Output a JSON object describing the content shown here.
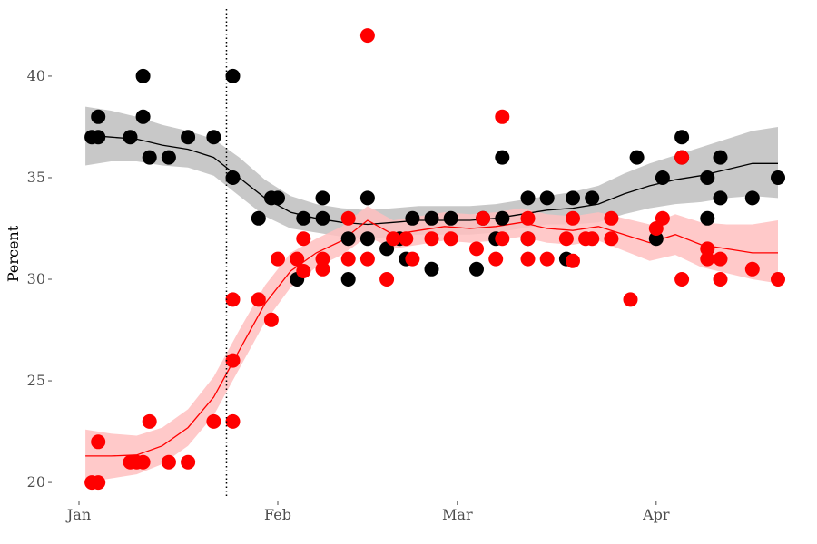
{
  "chart_data": {
    "type": "scatter",
    "title": "",
    "xlabel": "",
    "ylabel": "Percent",
    "xlim": [
      "2021-01-01",
      "2021-04-22"
    ],
    "ylim": [
      19.2,
      43.3
    ],
    "grid": false,
    "x_ticks": [
      {
        "date": "2021-01-01",
        "label": "Jan"
      },
      {
        "date": "2021-02-01",
        "label": "Feb"
      },
      {
        "date": "2021-03-01",
        "label": "Mar"
      },
      {
        "date": "2021-04-01",
        "label": "Apr"
      }
    ],
    "y_ticks": [
      20,
      25,
      30,
      35,
      40
    ],
    "vline": {
      "date": "2021-01-24",
      "style": "dotted",
      "color": "#000000"
    },
    "series": [
      {
        "color": "#000000",
        "ribbon_color": "#c8c8c8",
        "points": [
          {
            "x": "2021-01-03",
            "y": 37
          },
          {
            "x": "2021-01-04",
            "y": 37
          },
          {
            "x": "2021-01-04",
            "y": 38
          },
          {
            "x": "2021-01-09",
            "y": 37
          },
          {
            "x": "2021-01-11",
            "y": 40
          },
          {
            "x": "2021-01-11",
            "y": 38
          },
          {
            "x": "2021-01-12",
            "y": 36
          },
          {
            "x": "2021-01-15",
            "y": 36
          },
          {
            "x": "2021-01-18",
            "y": 37
          },
          {
            "x": "2021-01-22",
            "y": 37
          },
          {
            "x": "2021-01-25",
            "y": 40
          },
          {
            "x": "2021-01-25",
            "y": 35
          },
          {
            "x": "2021-01-29",
            "y": 33
          },
          {
            "x": "2021-01-31",
            "y": 34
          },
          {
            "x": "2021-02-01",
            "y": 34
          },
          {
            "x": "2021-02-04",
            "y": 30
          },
          {
            "x": "2021-02-05",
            "y": 33
          },
          {
            "x": "2021-02-08",
            "y": 34
          },
          {
            "x": "2021-02-08",
            "y": 33
          },
          {
            "x": "2021-02-12",
            "y": 30
          },
          {
            "x": "2021-02-12",
            "y": 32
          },
          {
            "x": "2021-02-15",
            "y": 34
          },
          {
            "x": "2021-02-15",
            "y": 32
          },
          {
            "x": "2021-02-18",
            "y": 31.5
          },
          {
            "x": "2021-02-20",
            "y": 32
          },
          {
            "x": "2021-02-21",
            "y": 31
          },
          {
            "x": "2021-02-22",
            "y": 33
          },
          {
            "x": "2021-02-25",
            "y": 30.5
          },
          {
            "x": "2021-02-25",
            "y": 33
          },
          {
            "x": "2021-02-28",
            "y": 33
          },
          {
            "x": "2021-03-04",
            "y": 30.5
          },
          {
            "x": "2021-03-05",
            "y": 33
          },
          {
            "x": "2021-03-07",
            "y": 32
          },
          {
            "x": "2021-03-08",
            "y": 36
          },
          {
            "x": "2021-03-08",
            "y": 33
          },
          {
            "x": "2021-03-12",
            "y": 34
          },
          {
            "x": "2021-03-12",
            "y": 32
          },
          {
            "x": "2021-03-15",
            "y": 34
          },
          {
            "x": "2021-03-18",
            "y": 31
          },
          {
            "x": "2021-03-19",
            "y": 34
          },
          {
            "x": "2021-03-22",
            "y": 34
          },
          {
            "x": "2021-03-29",
            "y": 36
          },
          {
            "x": "2021-04-01",
            "y": 32
          },
          {
            "x": "2021-04-02",
            "y": 35
          },
          {
            "x": "2021-04-05",
            "y": 37
          },
          {
            "x": "2021-04-05",
            "y": 36
          },
          {
            "x": "2021-04-09",
            "y": 35
          },
          {
            "x": "2021-04-09",
            "y": 33
          },
          {
            "x": "2021-04-11",
            "y": 36
          },
          {
            "x": "2021-04-11",
            "y": 34
          },
          {
            "x": "2021-04-16",
            "y": 34
          },
          {
            "x": "2021-04-20",
            "y": 35
          }
        ],
        "trend": [
          {
            "x": "2021-01-02",
            "y": 37.1,
            "lo": 35.6,
            "hi": 38.5
          },
          {
            "x": "2021-01-06",
            "y": 37.0,
            "lo": 35.8,
            "hi": 38.3
          },
          {
            "x": "2021-01-10",
            "y": 36.9,
            "lo": 35.8,
            "hi": 38.0
          },
          {
            "x": "2021-01-14",
            "y": 36.6,
            "lo": 35.6,
            "hi": 37.6
          },
          {
            "x": "2021-01-18",
            "y": 36.4,
            "lo": 35.5,
            "hi": 37.3
          },
          {
            "x": "2021-01-22",
            "y": 36.0,
            "lo": 35.1,
            "hi": 36.9
          },
          {
            "x": "2021-01-26",
            "y": 35.0,
            "lo": 34.1,
            "hi": 36.0
          },
          {
            "x": "2021-01-30",
            "y": 34.0,
            "lo": 33.1,
            "hi": 34.9
          },
          {
            "x": "2021-02-03",
            "y": 33.3,
            "lo": 32.5,
            "hi": 34.1
          },
          {
            "x": "2021-02-07",
            "y": 33.0,
            "lo": 32.3,
            "hi": 33.7
          },
          {
            "x": "2021-02-11",
            "y": 32.8,
            "lo": 32.1,
            "hi": 33.5
          },
          {
            "x": "2021-02-15",
            "y": 32.7,
            "lo": 32.0,
            "hi": 33.4
          },
          {
            "x": "2021-02-19",
            "y": 32.8,
            "lo": 32.1,
            "hi": 33.5
          },
          {
            "x": "2021-02-23",
            "y": 32.9,
            "lo": 32.2,
            "hi": 33.6
          },
          {
            "x": "2021-02-27",
            "y": 32.9,
            "lo": 32.2,
            "hi": 33.6
          },
          {
            "x": "2021-03-03",
            "y": 32.9,
            "lo": 32.2,
            "hi": 33.6
          },
          {
            "x": "2021-03-07",
            "y": 33.0,
            "lo": 32.3,
            "hi": 33.7
          },
          {
            "x": "2021-03-11",
            "y": 33.2,
            "lo": 32.5,
            "hi": 33.9
          },
          {
            "x": "2021-03-15",
            "y": 33.4,
            "lo": 32.7,
            "hi": 34.1
          },
          {
            "x": "2021-03-19",
            "y": 33.5,
            "lo": 32.7,
            "hi": 34.3
          },
          {
            "x": "2021-03-23",
            "y": 33.7,
            "lo": 32.8,
            "hi": 34.6
          },
          {
            "x": "2021-03-27",
            "y": 34.2,
            "lo": 33.2,
            "hi": 35.2
          },
          {
            "x": "2021-03-31",
            "y": 34.6,
            "lo": 33.5,
            "hi": 35.7
          },
          {
            "x": "2021-04-04",
            "y": 34.9,
            "lo": 33.7,
            "hi": 36.1
          },
          {
            "x": "2021-04-08",
            "y": 35.1,
            "lo": 33.8,
            "hi": 36.5
          },
          {
            "x": "2021-04-12",
            "y": 35.4,
            "lo": 34.0,
            "hi": 36.9
          },
          {
            "x": "2021-04-16",
            "y": 35.7,
            "lo": 34.1,
            "hi": 37.3
          },
          {
            "x": "2021-04-20",
            "y": 35.7,
            "lo": 34.0,
            "hi": 37.5
          }
        ]
      },
      {
        "color": "#ff0000",
        "ribbon_color": "#ffc0c0",
        "points": [
          {
            "x": "2021-01-03",
            "y": 20
          },
          {
            "x": "2021-01-04",
            "y": 20
          },
          {
            "x": "2021-01-04",
            "y": 22
          },
          {
            "x": "2021-01-09",
            "y": 21
          },
          {
            "x": "2021-01-10",
            "y": 21
          },
          {
            "x": "2021-01-11",
            "y": 21
          },
          {
            "x": "2021-01-12",
            "y": 23
          },
          {
            "x": "2021-01-15",
            "y": 21
          },
          {
            "x": "2021-01-18",
            "y": 21
          },
          {
            "x": "2021-01-22",
            "y": 23
          },
          {
            "x": "2021-01-25",
            "y": 29
          },
          {
            "x": "2021-01-25",
            "y": 26
          },
          {
            "x": "2021-01-25",
            "y": 23
          },
          {
            "x": "2021-01-29",
            "y": 29
          },
          {
            "x": "2021-01-31",
            "y": 28
          },
          {
            "x": "2021-02-01",
            "y": 31
          },
          {
            "x": "2021-02-04",
            "y": 31
          },
          {
            "x": "2021-02-05",
            "y": 32
          },
          {
            "x": "2021-02-05",
            "y": 30.4
          },
          {
            "x": "2021-02-08",
            "y": 31
          },
          {
            "x": "2021-02-08",
            "y": 30.5
          },
          {
            "x": "2021-02-12",
            "y": 33
          },
          {
            "x": "2021-02-12",
            "y": 31
          },
          {
            "x": "2021-02-15",
            "y": 42
          },
          {
            "x": "2021-02-15",
            "y": 31
          },
          {
            "x": "2021-02-18",
            "y": 30
          },
          {
            "x": "2021-02-19",
            "y": 32
          },
          {
            "x": "2021-02-21",
            "y": 32
          },
          {
            "x": "2021-02-22",
            "y": 31
          },
          {
            "x": "2021-02-25",
            "y": 32
          },
          {
            "x": "2021-02-28",
            "y": 32
          },
          {
            "x": "2021-03-04",
            "y": 31.5
          },
          {
            "x": "2021-03-05",
            "y": 33
          },
          {
            "x": "2021-03-07",
            "y": 31
          },
          {
            "x": "2021-03-08",
            "y": 38
          },
          {
            "x": "2021-03-08",
            "y": 32
          },
          {
            "x": "2021-03-12",
            "y": 33
          },
          {
            "x": "2021-03-12",
            "y": 32
          },
          {
            "x": "2021-03-12",
            "y": 31
          },
          {
            "x": "2021-03-15",
            "y": 31
          },
          {
            "x": "2021-03-18",
            "y": 32
          },
          {
            "x": "2021-03-19",
            "y": 33
          },
          {
            "x": "2021-03-19",
            "y": 30.9
          },
          {
            "x": "2021-03-21",
            "y": 32
          },
          {
            "x": "2021-03-22",
            "y": 32
          },
          {
            "x": "2021-03-25",
            "y": 33
          },
          {
            "x": "2021-03-25",
            "y": 32
          },
          {
            "x": "2021-03-28",
            "y": 29
          },
          {
            "x": "2021-04-01",
            "y": 32.5
          },
          {
            "x": "2021-04-02",
            "y": 33
          },
          {
            "x": "2021-04-05",
            "y": 36
          },
          {
            "x": "2021-04-05",
            "y": 30
          },
          {
            "x": "2021-04-09",
            "y": 31.5
          },
          {
            "x": "2021-04-09",
            "y": 31
          },
          {
            "x": "2021-04-11",
            "y": 31
          },
          {
            "x": "2021-04-11",
            "y": 30
          },
          {
            "x": "2021-04-16",
            "y": 30.5
          },
          {
            "x": "2021-04-20",
            "y": 30
          }
        ],
        "trend": [
          {
            "x": "2021-01-02",
            "y": 21.3,
            "lo": 20.0,
            "hi": 22.6
          },
          {
            "x": "2021-01-06",
            "y": 21.3,
            "lo": 20.2,
            "hi": 22.4
          },
          {
            "x": "2021-01-10",
            "y": 21.35,
            "lo": 20.4,
            "hi": 22.3
          },
          {
            "x": "2021-01-14",
            "y": 21.8,
            "lo": 20.9,
            "hi": 22.7
          },
          {
            "x": "2021-01-18",
            "y": 22.7,
            "lo": 21.8,
            "hi": 23.6
          },
          {
            "x": "2021-01-22",
            "y": 24.2,
            "lo": 23.3,
            "hi": 25.2
          },
          {
            "x": "2021-01-26",
            "y": 26.5,
            "lo": 25.6,
            "hi": 27.5
          },
          {
            "x": "2021-01-30",
            "y": 28.8,
            "lo": 27.9,
            "hi": 29.7
          },
          {
            "x": "2021-02-03",
            "y": 30.4,
            "lo": 29.6,
            "hi": 31.3
          },
          {
            "x": "2021-02-07",
            "y": 31.3,
            "lo": 30.6,
            "hi": 32.0
          },
          {
            "x": "2021-02-11",
            "y": 31.9,
            "lo": 31.2,
            "hi": 32.6
          },
          {
            "x": "2021-02-15",
            "y": 32.9,
            "lo": 32.1,
            "hi": 33.6
          },
          {
            "x": "2021-02-19",
            "y": 32.2,
            "lo": 31.5,
            "hi": 32.9
          },
          {
            "x": "2021-02-23",
            "y": 32.4,
            "lo": 31.7,
            "hi": 33.1
          },
          {
            "x": "2021-02-27",
            "y": 32.6,
            "lo": 31.9,
            "hi": 33.3
          },
          {
            "x": "2021-03-03",
            "y": 32.5,
            "lo": 31.8,
            "hi": 33.2
          },
          {
            "x": "2021-03-07",
            "y": 32.6,
            "lo": 31.9,
            "hi": 33.3
          },
          {
            "x": "2021-03-11",
            "y": 32.8,
            "lo": 32.1,
            "hi": 33.5
          },
          {
            "x": "2021-03-15",
            "y": 32.5,
            "lo": 31.8,
            "hi": 33.2
          },
          {
            "x": "2021-03-19",
            "y": 32.4,
            "lo": 31.7,
            "hi": 33.1
          },
          {
            "x": "2021-03-23",
            "y": 32.6,
            "lo": 31.9,
            "hi": 33.3
          },
          {
            "x": "2021-03-27",
            "y": 32.2,
            "lo": 31.4,
            "hi": 33.0
          },
          {
            "x": "2021-03-31",
            "y": 31.8,
            "lo": 30.9,
            "hi": 32.7
          },
          {
            "x": "2021-04-04",
            "y": 32.2,
            "lo": 31.2,
            "hi": 33.2
          },
          {
            "x": "2021-04-08",
            "y": 31.7,
            "lo": 30.6,
            "hi": 32.8
          },
          {
            "x": "2021-04-12",
            "y": 31.5,
            "lo": 30.3,
            "hi": 32.7
          },
          {
            "x": "2021-04-16",
            "y": 31.3,
            "lo": 30.0,
            "hi": 32.7
          },
          {
            "x": "2021-04-20",
            "y": 31.3,
            "lo": 29.8,
            "hi": 32.9
          }
        ]
      }
    ]
  }
}
